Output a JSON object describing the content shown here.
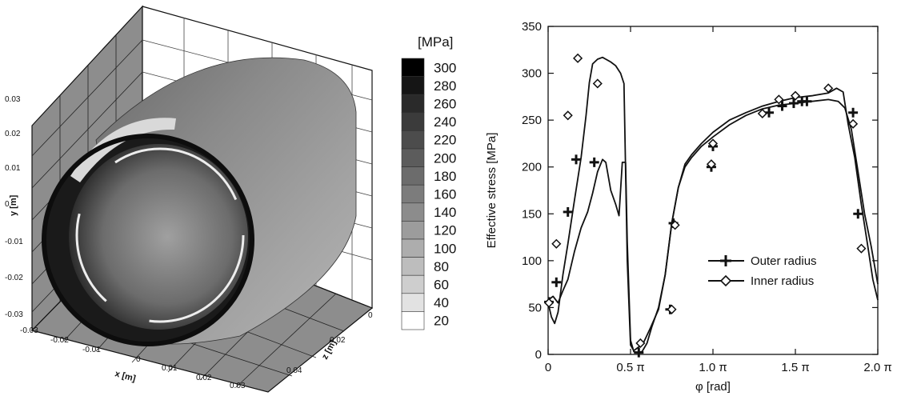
{
  "left_panel": {
    "colorbar_unit": "[MPa]",
    "colorbar_levels": [
      "300",
      "280",
      "260",
      "240",
      "220",
      "200",
      "180",
      "160",
      "140",
      "120",
      "100",
      "80",
      "60",
      "40",
      "20"
    ],
    "colorbar_gray": [
      "#000000",
      "#151515",
      "#2a2a2a",
      "#3b3b3b",
      "#4c4c4c",
      "#5c5c5c",
      "#6c6c6c",
      "#7c7c7c",
      "#8c8c8c",
      "#9c9c9c",
      "#adadad",
      "#bdbdbd",
      "#cecece",
      "#e2e2e2",
      "#ffffff"
    ],
    "y_axis": {
      "label": "y [m]",
      "ticks": [
        "0.03",
        "0.02",
        "0.01",
        "0",
        "-0.01",
        "-0.02",
        "-0.03"
      ]
    },
    "x_axis": {
      "label": "x [m]",
      "ticks": [
        "-0.03",
        "-0.02",
        "-0.01",
        "0",
        "0.01",
        "0.02",
        "0.03"
      ]
    },
    "z_axis": {
      "label": "z [m]",
      "ticks": [
        "0",
        "0.02",
        "0.04"
      ]
    }
  },
  "chart_data": {
    "type": "line",
    "xlabel": "φ [rad]",
    "ylabel": "Effective stress [MPa]",
    "xlim": [
      0,
      2.0
    ],
    "ylim": [
      0,
      350
    ],
    "x_ticks": [
      {
        "v": 0,
        "label": "0"
      },
      {
        "v": 0.5,
        "label": "0.5 π"
      },
      {
        "v": 1.0,
        "label": "1.0 π"
      },
      {
        "v": 1.5,
        "label": "1.5 π"
      },
      {
        "v": 2.0,
        "label": "2.0 π"
      }
    ],
    "y_ticks": [
      0,
      50,
      100,
      150,
      200,
      250,
      300,
      350
    ],
    "legend_position": "center-right",
    "series": [
      {
        "name": "Outer radius",
        "marker": "plus",
        "x": [
          0,
          0.03,
          0.06,
          0.09,
          0.12,
          0.16,
          0.2,
          0.24,
          0.27,
          0.3,
          0.33,
          0.35,
          0.38,
          0.41,
          0.43,
          0.45,
          0.47,
          0.48,
          0.5,
          0.52,
          0.54,
          0.57,
          0.6,
          0.63,
          0.67,
          0.71,
          0.75,
          0.79,
          0.83,
          0.87,
          0.93,
          1.0,
          1.1,
          1.2,
          1.3,
          1.4,
          1.5,
          1.6,
          1.7,
          1.76,
          1.8,
          1.84,
          1.88,
          1.92,
          1.96,
          2.0
        ],
        "y": [
          58,
          62,
          55,
          68,
          80,
          110,
          135,
          152,
          172,
          195,
          208,
          205,
          175,
          160,
          148,
          205,
          205,
          120,
          15,
          3,
          2,
          3,
          12,
          30,
          50,
          85,
          140,
          178,
          200,
          210,
          222,
          232,
          245,
          255,
          262,
          266,
          268,
          270,
          272,
          270,
          263,
          240,
          195,
          150,
          115,
          75
        ]
      },
      {
        "name": "Inner radius",
        "marker": "diamond",
        "x": [
          0,
          0.02,
          0.04,
          0.06,
          0.09,
          0.12,
          0.16,
          0.2,
          0.23,
          0.25,
          0.27,
          0.3,
          0.33,
          0.35,
          0.38,
          0.41,
          0.44,
          0.46,
          0.48,
          0.5,
          0.52,
          0.55,
          0.58,
          0.62,
          0.67,
          0.71,
          0.75,
          0.79,
          0.83,
          0.87,
          0.93,
          1.0,
          1.1,
          1.2,
          1.3,
          1.4,
          1.5,
          1.6,
          1.7,
          1.75,
          1.79,
          1.82,
          1.86,
          1.9,
          1.94,
          1.97,
          2.0
        ],
        "y": [
          55,
          40,
          33,
          45,
          85,
          118,
          165,
          210,
          255,
          290,
          310,
          315,
          317,
          315,
          312,
          308,
          300,
          289,
          100,
          10,
          4,
          8,
          13,
          28,
          48,
          85,
          140,
          178,
          203,
          213,
          225,
          237,
          250,
          258,
          265,
          270,
          274,
          276,
          279,
          284,
          280,
          246,
          210,
          160,
          115,
          80,
          58
        ]
      }
    ],
    "markers": {
      "Outer radius": [
        [
          0.005,
          56
        ],
        [
          0.05,
          77
        ],
        [
          0.12,
          152
        ],
        [
          0.17,
          208
        ],
        [
          0.28,
          205
        ],
        [
          0.55,
          2
        ],
        [
          0.74,
          48
        ],
        [
          0.76,
          140
        ],
        [
          0.99,
          200
        ],
        [
          1.0,
          222
        ],
        [
          1.34,
          258
        ],
        [
          1.42,
          265
        ],
        [
          1.49,
          268
        ],
        [
          1.54,
          270
        ],
        [
          1.57,
          270
        ],
        [
          1.85,
          258
        ],
        [
          1.88,
          150
        ]
      ],
      "Inner radius": [
        [
          0.005,
          55
        ],
        [
          0.05,
          118
        ],
        [
          0.12,
          255
        ],
        [
          0.18,
          316
        ],
        [
          0.3,
          289
        ],
        [
          0.56,
          12
        ],
        [
          0.75,
          48
        ],
        [
          0.77,
          138
        ],
        [
          0.99,
          203
        ],
        [
          1.0,
          225
        ],
        [
          1.3,
          257
        ],
        [
          1.4,
          272
        ],
        [
          1.5,
          276
        ],
        [
          1.7,
          284
        ],
        [
          1.85,
          246
        ],
        [
          1.9,
          113
        ]
      ]
    }
  }
}
